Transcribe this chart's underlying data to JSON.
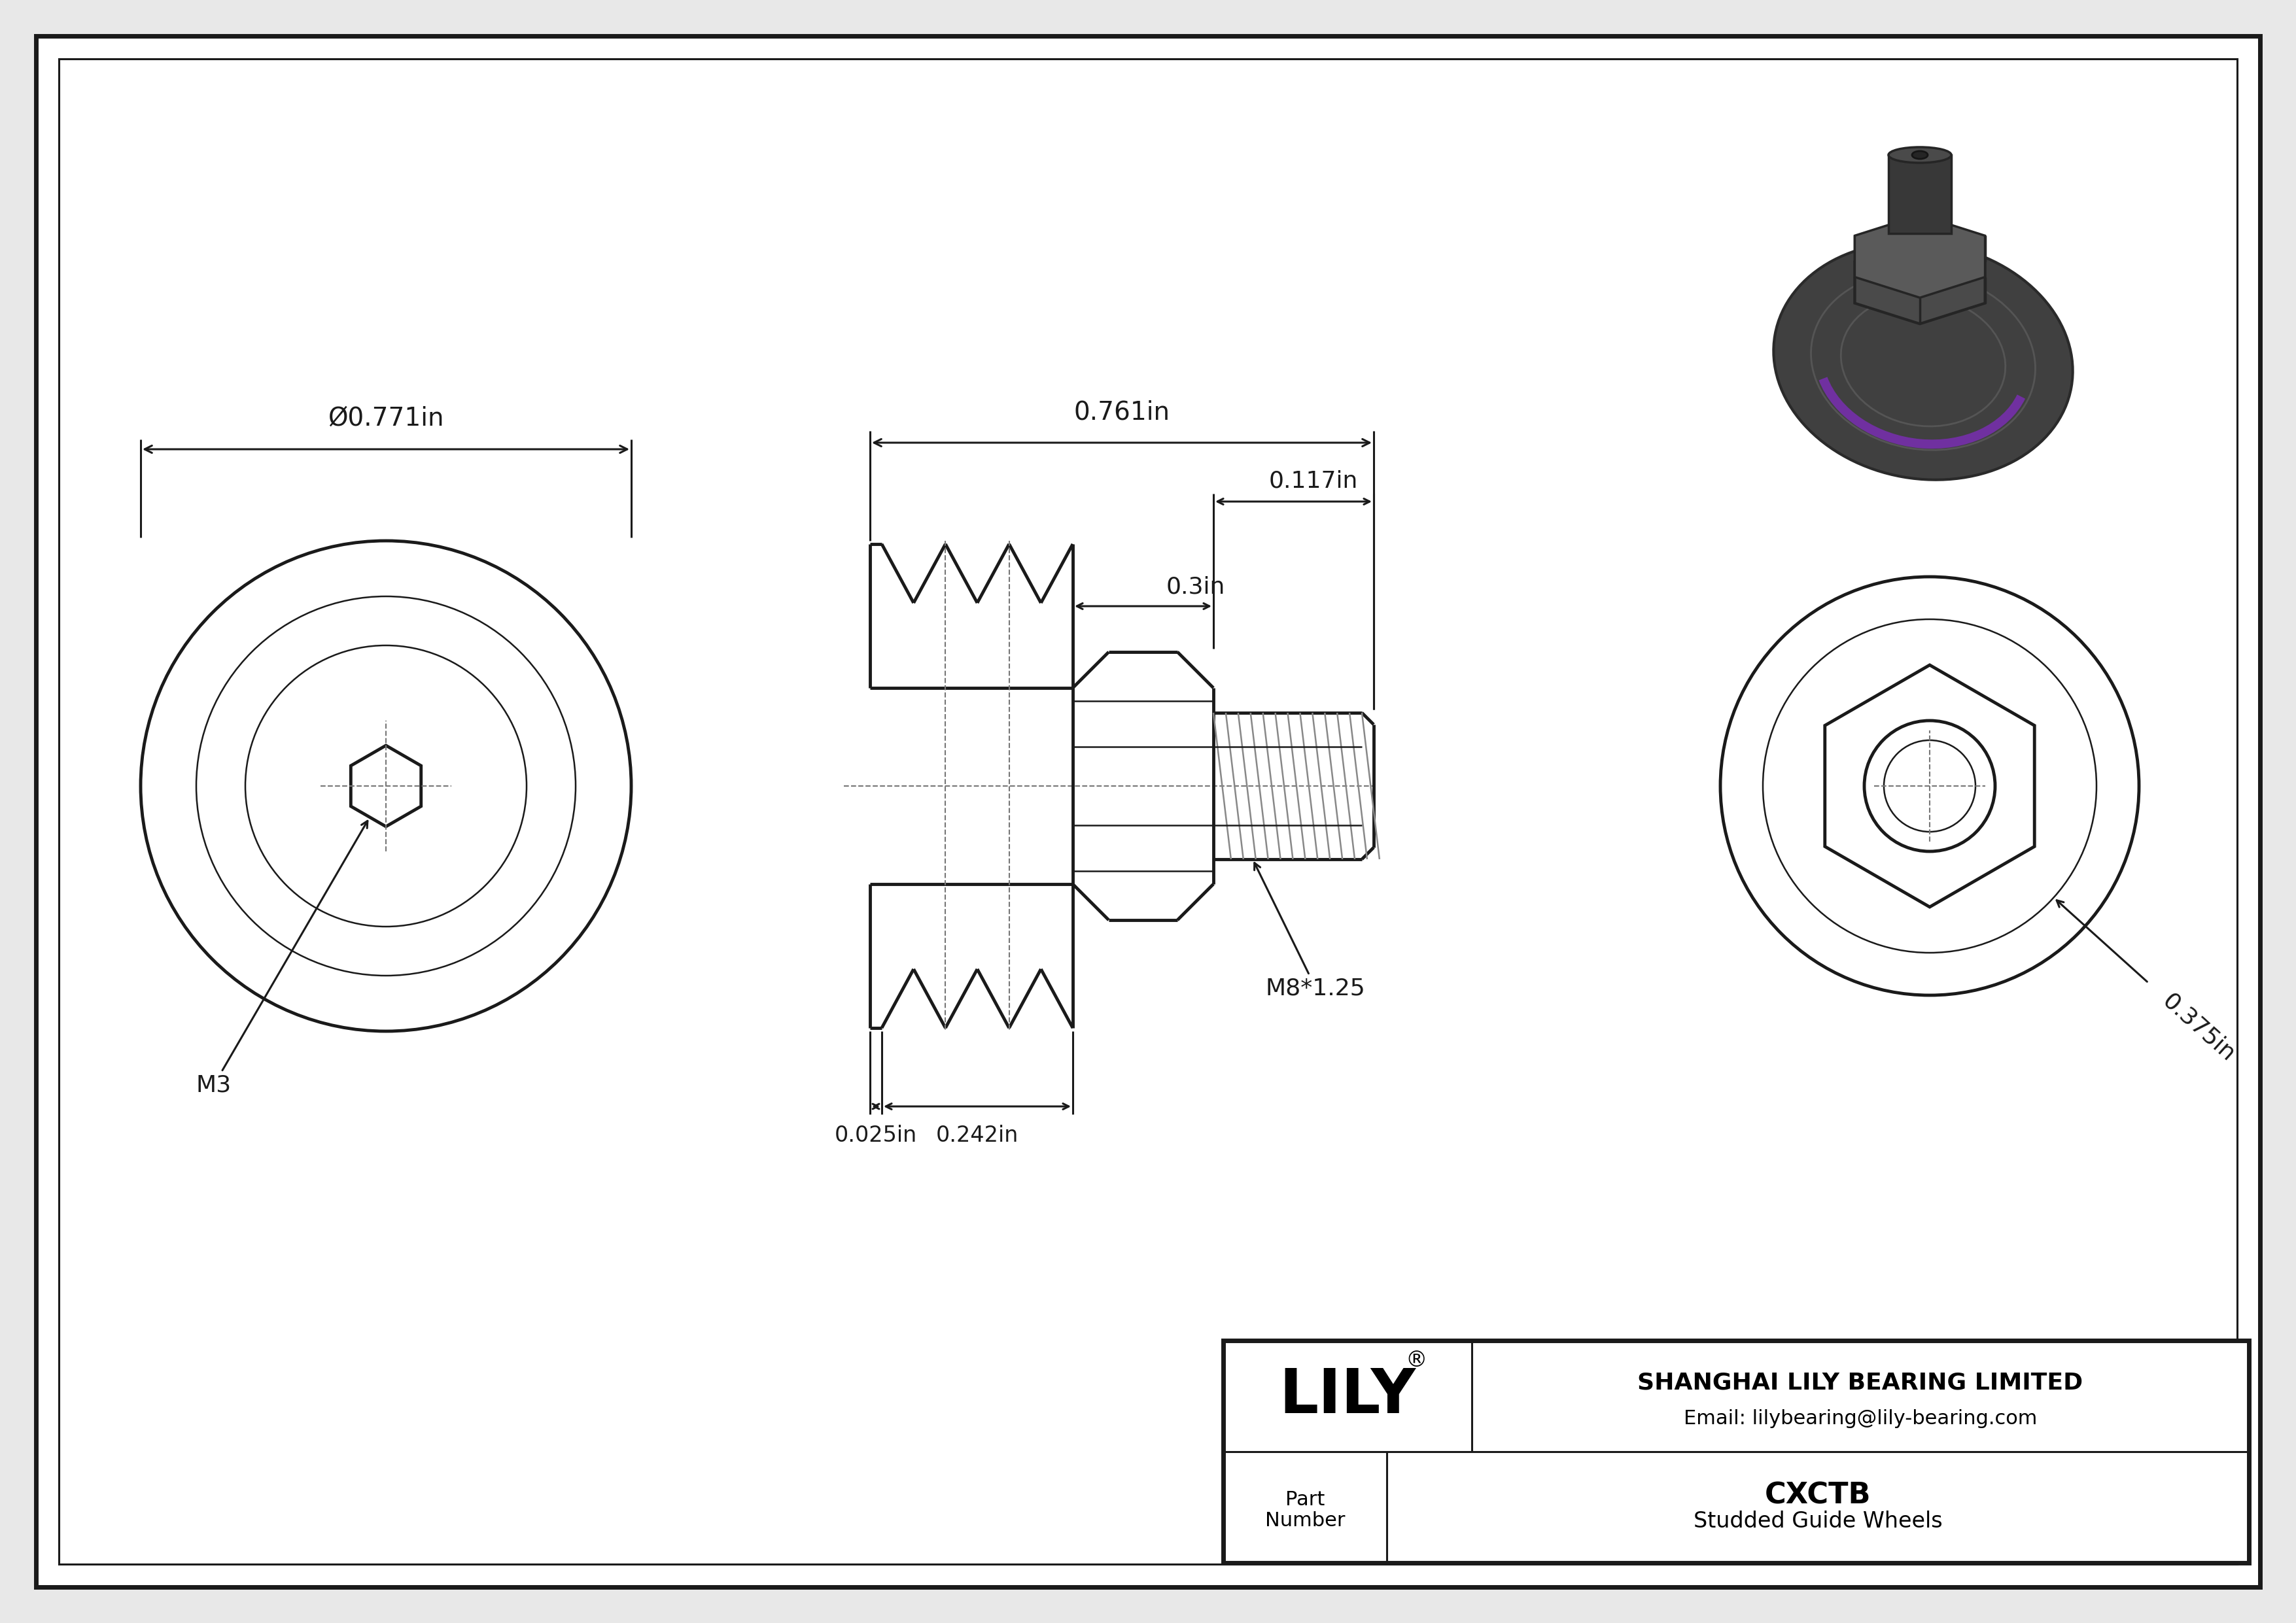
{
  "bg_color": "#e8e8e8",
  "drawing_bg": "#ffffff",
  "line_color": "#1a1a1a",
  "company": "SHANGHAI LILY BEARING LIMITED",
  "email": "Email: lilybearing@lily-bearing.com",
  "part_number": "CXCTB",
  "part_description": "Studded Guide Wheels",
  "logo": "LILY",
  "dimensions": {
    "diameter": "Ø0.771in",
    "width_total": "0.761in",
    "stud_len": "0.117in",
    "hex_dia": "0.3in",
    "groove_width": "0.025in",
    "body_width": "0.242in",
    "thread": "M8*1.25",
    "side_dim": "0.375in",
    "front_label": "M3"
  }
}
